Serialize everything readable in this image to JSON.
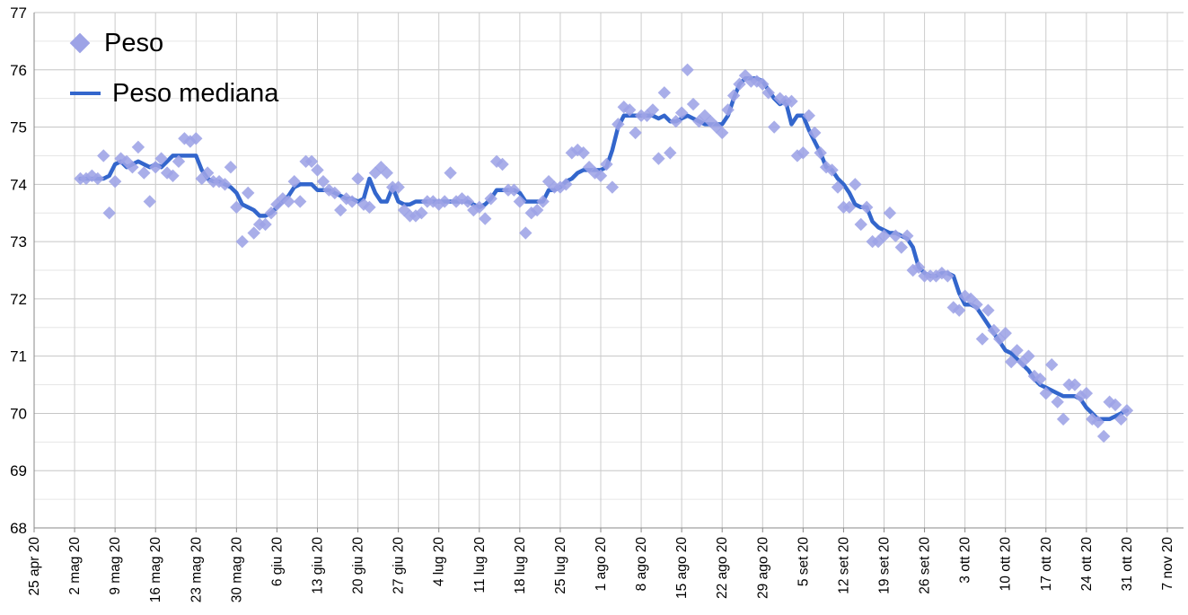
{
  "chart": {
    "background": "#ffffff",
    "legend": {
      "position": "top-left-inside",
      "items": [
        {
          "label": "Peso",
          "marker": "diamond",
          "color": "#9da3e6"
        },
        {
          "label": "Peso mediana",
          "marker": "line",
          "color": "#3366cc"
        }
      ]
    }
  },
  "chart_data": {
    "type": "scatter",
    "title": "",
    "xlabel": "",
    "ylabel": "",
    "grid": true,
    "legend_position": "top-left-inside",
    "x_axis": {
      "kind": "time",
      "tick_interval_days": 7,
      "range_days": 196,
      "tick_labels": [
        "25 apr 20",
        "2 mag 20",
        "9 mag 20",
        "16 mag 20",
        "23 mag 20",
        "30 mag 20",
        "6 giu 20",
        "13 giu 20",
        "20 giu 20",
        "27 giu 20",
        "4 lug 20",
        "11 lug 20",
        "18 lug 20",
        "25 lug 20",
        "1 ago 20",
        "8 ago 20",
        "15 ago 20",
        "22 ago 20",
        "29 ago 20",
        "5 set 20",
        "12 set 20",
        "19 set 20",
        "26 set 20",
        "3 ott 20",
        "10 ott 20",
        "17 ott 20",
        "24 ott 20",
        "31 ott 20",
        "7 nov 20"
      ]
    },
    "y_axis": {
      "min": 68,
      "max": 77,
      "major_step": 1,
      "minor_step": 0.5,
      "tick_labels": [
        "68",
        "69",
        "70",
        "71",
        "72",
        "73",
        "74",
        "75",
        "76",
        "77"
      ]
    },
    "data_start_date": "3 mag 20",
    "data_cadence": "daily",
    "data_start_offset_days_from_first_tick": 8,
    "series": [
      {
        "name": "Peso",
        "type": "scatter",
        "marker": "diamond",
        "color": "#9da3e6",
        "values": [
          74.1,
          74.1,
          74.15,
          74.1,
          74.5,
          73.5,
          74.05,
          74.45,
          74.4,
          74.3,
          74.65,
          74.2,
          73.7,
          74.3,
          74.45,
          74.2,
          74.15,
          74.4,
          74.8,
          74.75,
          74.8,
          74.1,
          74.2,
          74.05,
          74.05,
          74.0,
          74.3,
          73.6,
          73.0,
          73.85,
          73.15,
          73.3,
          73.3,
          73.5,
          73.65,
          73.75,
          73.7,
          74.05,
          73.7,
          74.4,
          74.4,
          74.25,
          74.05,
          73.9,
          73.85,
          73.55,
          73.75,
          73.7,
          74.1,
          73.65,
          73.6,
          74.2,
          74.3,
          74.2,
          73.95,
          73.95,
          73.55,
          73.45,
          73.45,
          73.5,
          73.7,
          73.7,
          73.65,
          73.7,
          74.2,
          73.7,
          73.75,
          73.7,
          73.55,
          73.6,
          73.4,
          73.75,
          74.4,
          74.35,
          73.9,
          73.9,
          73.7,
          73.15,
          73.5,
          73.55,
          73.7,
          74.05,
          73.95,
          73.95,
          74.0,
          74.55,
          74.6,
          74.55,
          74.3,
          74.2,
          74.15,
          74.35,
          73.95,
          75.05,
          75.35,
          75.3,
          74.9,
          75.2,
          75.2,
          75.3,
          74.45,
          75.6,
          74.55,
          75.1,
          75.25,
          76.0,
          75.4,
          75.1,
          75.2,
          75.1,
          75.0,
          74.9,
          75.3,
          75.55,
          75.75,
          75.9,
          75.8,
          75.8,
          75.75,
          75.6,
          75.0,
          75.5,
          75.45,
          75.45,
          74.5,
          74.55,
          75.2,
          74.9,
          74.55,
          74.3,
          74.25,
          73.95,
          73.6,
          73.6,
          74.0,
          73.3,
          73.6,
          73.0,
          73.0,
          73.1,
          73.5,
          73.1,
          72.9,
          73.1,
          72.5,
          72.55,
          72.4,
          72.4,
          72.4,
          72.45,
          72.4,
          71.85,
          71.8,
          72.05,
          72.0,
          71.9,
          71.3,
          71.8,
          71.45,
          71.3,
          71.4,
          70.9,
          71.1,
          70.9,
          71.0,
          70.65,
          70.6,
          70.35,
          70.85,
          70.2,
          69.9,
          70.5,
          70.5,
          70.3,
          70.35,
          69.9,
          69.85,
          69.6,
          70.2,
          70.15,
          69.9,
          70.05
        ]
      },
      {
        "name": "Peso mediana",
        "type": "line",
        "color": "#3366cc",
        "values": [
          74.1,
          74.1,
          74.1,
          74.1,
          74.1,
          74.15,
          74.35,
          74.4,
          74.3,
          74.35,
          74.4,
          74.35,
          74.3,
          74.35,
          74.3,
          74.4,
          74.5,
          74.5,
          74.5,
          74.5,
          74.5,
          74.25,
          74.1,
          74.05,
          74.05,
          74.0,
          73.95,
          73.85,
          73.65,
          73.6,
          73.55,
          73.45,
          73.45,
          73.5,
          73.6,
          73.7,
          73.8,
          73.95,
          74.0,
          74.0,
          74.0,
          73.9,
          73.9,
          73.9,
          73.85,
          73.8,
          73.75,
          73.75,
          73.7,
          73.75,
          74.1,
          73.85,
          73.7,
          73.7,
          73.95,
          73.7,
          73.65,
          73.65,
          73.7,
          73.7,
          73.7,
          73.7,
          73.7,
          73.7,
          73.7,
          73.7,
          73.7,
          73.7,
          73.65,
          73.6,
          73.65,
          73.75,
          73.9,
          73.9,
          73.9,
          73.9,
          73.85,
          73.7,
          73.7,
          73.7,
          73.7,
          73.9,
          73.9,
          73.95,
          74.05,
          74.1,
          74.2,
          74.25,
          74.25,
          74.25,
          74.25,
          74.3,
          74.6,
          75.0,
          75.2,
          75.2,
          75.2,
          75.2,
          75.2,
          75.2,
          75.15,
          75.2,
          75.1,
          75.1,
          75.15,
          75.2,
          75.15,
          75.1,
          75.05,
          75.05,
          75.05,
          75.05,
          75.2,
          75.5,
          75.75,
          75.85,
          75.85,
          75.85,
          75.8,
          75.65,
          75.5,
          75.4,
          75.45,
          75.05,
          75.2,
          75.2,
          74.95,
          74.75,
          74.55,
          74.3,
          74.25,
          74.1,
          74.0,
          73.85,
          73.65,
          73.6,
          73.6,
          73.35,
          73.25,
          73.2,
          73.15,
          73.15,
          73.1,
          73.05,
          72.9,
          72.55,
          72.45,
          72.4,
          72.4,
          72.45,
          72.45,
          72.4,
          72.1,
          71.9,
          71.9,
          71.85,
          71.7,
          71.55,
          71.4,
          71.25,
          71.1,
          71.05,
          70.95,
          70.85,
          70.75,
          70.6,
          70.5,
          70.45,
          70.4,
          70.35,
          70.3,
          70.3,
          70.3,
          70.25,
          70.1,
          70.0,
          69.9,
          69.9,
          69.9,
          69.95,
          70.0,
          70.05
        ]
      }
    ]
  }
}
